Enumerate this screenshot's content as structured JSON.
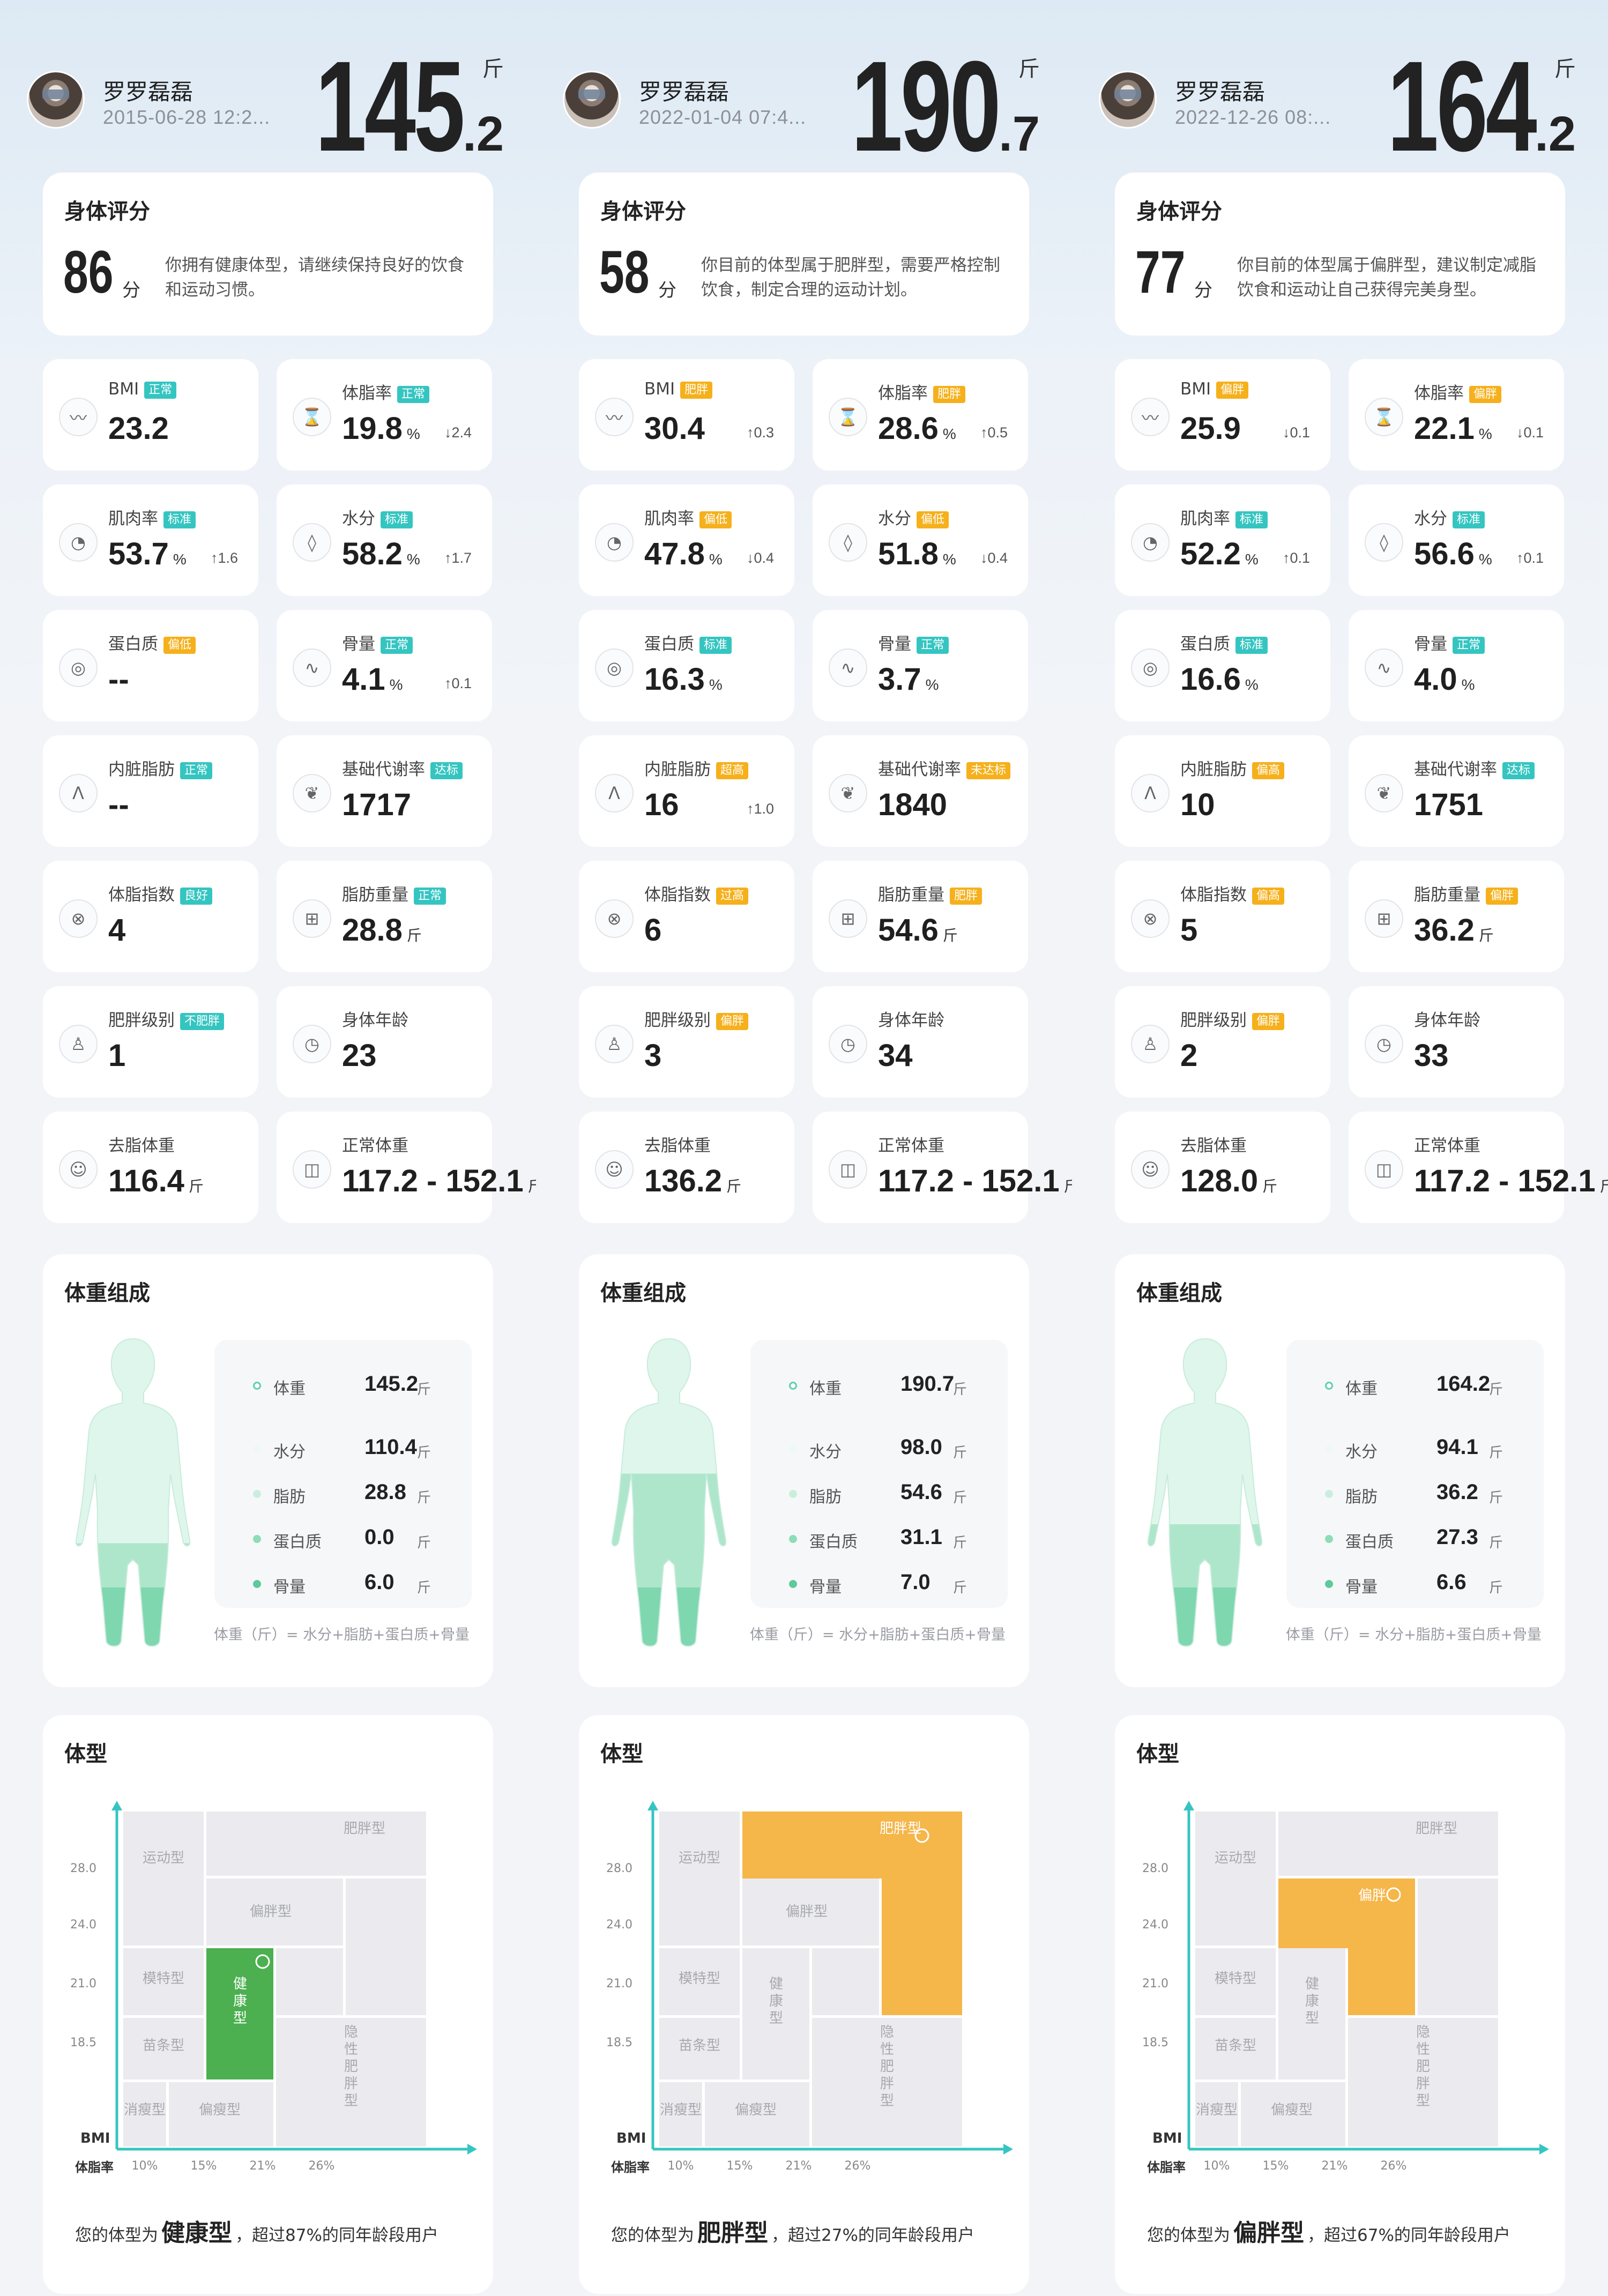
{
  "colors": {
    "accent": "#35c5c1",
    "tag_green": "#35c5c1",
    "tag_orange": "#f5b01b",
    "healthy": "#4caf50",
    "fat": "#f5b64a",
    "body": "#dff6ec",
    "body_low": "#aee6cc"
  },
  "labels": {
    "score_title": "身体评分",
    "score_unit": "分",
    "comp_title": "体重组成",
    "type_title": "体型",
    "formula": "体重（斤）= 水分+脂肪+蛋白质+骨量",
    "weight_unit": "斤",
    "result_prefix": "您的体型为",
    "type_axis_y": "BMI",
    "type_axis_x": "体脂率",
    "y_ticks": [
      "28.0",
      "24.0",
      "21.0",
      "18.5"
    ],
    "x_ticks": [
      "10%",
      "15%",
      "21%",
      "26%"
    ],
    "cell_labels": {
      "sport": "运动型",
      "fat": "肥胖型",
      "partial_fat": "偏胖型",
      "model": "模特型",
      "healthy": "健康型",
      "slim": "苗条型",
      "thin": "消瘦型",
      "partial_thin": "偏瘦型",
      "hidden_fat": "隐性肥胖型"
    }
  },
  "records": [
    {
      "user_name": "罗罗磊磊",
      "timestamp": "2015-06-28 12:2...",
      "weight_int": "145",
      "weight_dec": ".2",
      "score": "86",
      "score_desc": "你拥有健康体型，请继续保持良好的饮食和运动习惯。",
      "metrics": [
        {
          "icon": "bmi-icon",
          "glyph": "〰",
          "label": "BMI",
          "tag": "正常",
          "tag_color": "g",
          "value": "23.2",
          "unit": "",
          "change": ""
        },
        {
          "icon": "body-fat-icon",
          "glyph": "⌛",
          "label": "体脂率",
          "tag": "正常",
          "tag_color": "g",
          "value": "19.8",
          "unit": "%",
          "change": "↓2.4"
        },
        {
          "icon": "muscle-icon",
          "glyph": "◔",
          "label": "肌肉率",
          "tag": "标准",
          "tag_color": "g",
          "value": "53.7",
          "unit": "%",
          "change": "↑1.6"
        },
        {
          "icon": "water-drop-icon",
          "glyph": "◊",
          "label": "水分",
          "tag": "标准",
          "tag_color": "g",
          "value": "58.2",
          "unit": "%",
          "change": "↑1.7"
        },
        {
          "icon": "protein-icon",
          "glyph": "◎",
          "label": "蛋白质",
          "tag": "偏低",
          "tag_color": "o",
          "value": "--",
          "unit": "",
          "change": ""
        },
        {
          "icon": "bone-icon",
          "glyph": "∿",
          "label": "骨量",
          "tag": "正常",
          "tag_color": "g",
          "value": "4.1",
          "unit": "%",
          "change": "↑0.1"
        },
        {
          "icon": "lungs-icon",
          "glyph": "ᐱ",
          "label": "内脏脂肪",
          "tag": "正常",
          "tag_color": "g",
          "value": "--",
          "unit": "",
          "change": ""
        },
        {
          "icon": "leaf-icon",
          "glyph": "❦",
          "label": "基础代谢率",
          "tag": "达标",
          "tag_color": "g",
          "value": "1717",
          "unit": "",
          "change": ""
        },
        {
          "icon": "fat-index-icon",
          "glyph": "⊗",
          "label": "体脂指数",
          "tag": "良好",
          "tag_color": "g",
          "value": "4",
          "unit": "",
          "change": ""
        },
        {
          "icon": "fat-weight-icon",
          "glyph": "⊞",
          "label": "脂肪重量",
          "tag": "正常",
          "tag_color": "g",
          "value": "28.8",
          "unit": "斤",
          "change": ""
        },
        {
          "icon": "torso-icon",
          "glyph": "♙",
          "label": "肥胖级别",
          "tag": "不肥胖",
          "tag_color": "g",
          "value": "1",
          "unit": "",
          "change": ""
        },
        {
          "icon": "clock-icon",
          "glyph": "◷",
          "label": "身体年龄",
          "tag": "",
          "tag_color": "g",
          "value": "23",
          "unit": "",
          "change": ""
        },
        {
          "icon": "meditation-icon",
          "glyph": "☺",
          "label": "去脂体重",
          "tag": "",
          "tag_color": "g",
          "value": "116.4",
          "unit": "斤",
          "change": ""
        },
        {
          "icon": "scale-icon",
          "glyph": "◫",
          "label": "正常体重",
          "tag": "",
          "tag_color": "g",
          "value": "117.2 - 152.1",
          "unit": "斤",
          "change": ""
        }
      ],
      "composition": {
        "weight": "145.2",
        "water": "110.4",
        "fat": "28.8",
        "protein": "0.0",
        "bone": "6.0",
        "fill_level": 0.34,
        "fat_level": 0.2
      },
      "body_type": "健康型",
      "exceed_text": "，超过87%的同年龄段用户",
      "highlight": "healthy",
      "highlight_label": "健康型"
    },
    {
      "user_name": "罗罗磊磊",
      "timestamp": "2022-01-04 07:4...",
      "weight_int": "190",
      "weight_dec": ".7",
      "score": "58",
      "score_desc": "你目前的体型属于肥胖型，需要严格控制饮食，制定合理的运动计划。",
      "metrics": [
        {
          "icon": "bmi-icon",
          "glyph": "〰",
          "label": "BMI",
          "tag": "肥胖",
          "tag_color": "o",
          "value": "30.4",
          "unit": "",
          "change": "↑0.3"
        },
        {
          "icon": "body-fat-icon",
          "glyph": "⌛",
          "label": "体脂率",
          "tag": "肥胖",
          "tag_color": "o",
          "value": "28.6",
          "unit": "%",
          "change": "↑0.5"
        },
        {
          "icon": "muscle-icon",
          "glyph": "◔",
          "label": "肌肉率",
          "tag": "偏低",
          "tag_color": "o",
          "value": "47.8",
          "unit": "%",
          "change": "↓0.4"
        },
        {
          "icon": "water-drop-icon",
          "glyph": "◊",
          "label": "水分",
          "tag": "偏低",
          "tag_color": "o",
          "value": "51.8",
          "unit": "%",
          "change": "↓0.4"
        },
        {
          "icon": "protein-icon",
          "glyph": "◎",
          "label": "蛋白质",
          "tag": "标准",
          "tag_color": "g",
          "value": "16.3",
          "unit": "%",
          "change": ""
        },
        {
          "icon": "bone-icon",
          "glyph": "∿",
          "label": "骨量",
          "tag": "正常",
          "tag_color": "g",
          "value": "3.7",
          "unit": "%",
          "change": ""
        },
        {
          "icon": "lungs-icon",
          "glyph": "ᐱ",
          "label": "内脏脂肪",
          "tag": "超高",
          "tag_color": "o",
          "value": "16",
          "unit": "",
          "change": "↑1.0"
        },
        {
          "icon": "leaf-icon",
          "glyph": "❦",
          "label": "基础代谢率",
          "tag": "未达标",
          "tag_color": "o",
          "value": "1840",
          "unit": "",
          "change": ""
        },
        {
          "icon": "fat-index-icon",
          "glyph": "⊗",
          "label": "体脂指数",
          "tag": "过高",
          "tag_color": "o",
          "value": "6",
          "unit": "",
          "change": ""
        },
        {
          "icon": "fat-weight-icon",
          "glyph": "⊞",
          "label": "脂肪重量",
          "tag": "肥胖",
          "tag_color": "o",
          "value": "54.6",
          "unit": "斤",
          "change": ""
        },
        {
          "icon": "torso-icon",
          "glyph": "♙",
          "label": "肥胖级别",
          "tag": "偏胖",
          "tag_color": "o",
          "value": "3",
          "unit": "",
          "change": ""
        },
        {
          "icon": "clock-icon",
          "glyph": "◷",
          "label": "身体年龄",
          "tag": "",
          "tag_color": "g",
          "value": "34",
          "unit": "",
          "change": ""
        },
        {
          "icon": "meditation-icon",
          "glyph": "☺",
          "label": "去脂体重",
          "tag": "",
          "tag_color": "g",
          "value": "136.2",
          "unit": "斤",
          "change": ""
        },
        {
          "icon": "scale-icon",
          "glyph": "◫",
          "label": "正常体重",
          "tag": "",
          "tag_color": "g",
          "value": "117.2 - 152.1",
          "unit": "斤",
          "change": ""
        }
      ],
      "composition": {
        "weight": "190.7",
        "water": "98.0",
        "fat": "54.6",
        "protein": "31.1",
        "bone": "7.0",
        "fill_level": 0.56,
        "fat_level": 0.2
      },
      "body_type": "肥胖型",
      "exceed_text": "，超过27%的同年龄段用户",
      "highlight": "fat",
      "highlight_label": "肥胖型"
    },
    {
      "user_name": "罗罗磊磊",
      "timestamp": "2022-12-26 08:...",
      "weight_int": "164",
      "weight_dec": ".2",
      "score": "77",
      "score_desc": "你目前的体型属于偏胖型，建议制定减脂饮食和运动让自己获得完美身型。",
      "metrics": [
        {
          "icon": "bmi-icon",
          "glyph": "〰",
          "label": "BMI",
          "tag": "偏胖",
          "tag_color": "o",
          "value": "25.9",
          "unit": "",
          "change": "↓0.1"
        },
        {
          "icon": "body-fat-icon",
          "glyph": "⌛",
          "label": "体脂率",
          "tag": "偏胖",
          "tag_color": "o",
          "value": "22.1",
          "unit": "%",
          "change": "↓0.1"
        },
        {
          "icon": "muscle-icon",
          "glyph": "◔",
          "label": "肌肉率",
          "tag": "标准",
          "tag_color": "g",
          "value": "52.2",
          "unit": "%",
          "change": "↑0.1"
        },
        {
          "icon": "water-drop-icon",
          "glyph": "◊",
          "label": "水分",
          "tag": "标准",
          "tag_color": "g",
          "value": "56.6",
          "unit": "%",
          "change": "↑0.1"
        },
        {
          "icon": "protein-icon",
          "glyph": "◎",
          "label": "蛋白质",
          "tag": "标准",
          "tag_color": "g",
          "value": "16.6",
          "unit": "%",
          "change": ""
        },
        {
          "icon": "bone-icon",
          "glyph": "∿",
          "label": "骨量",
          "tag": "正常",
          "tag_color": "g",
          "value": "4.0",
          "unit": "%",
          "change": ""
        },
        {
          "icon": "lungs-icon",
          "glyph": "ᐱ",
          "label": "内脏脂肪",
          "tag": "偏高",
          "tag_color": "o",
          "value": "10",
          "unit": "",
          "change": ""
        },
        {
          "icon": "leaf-icon",
          "glyph": "❦",
          "label": "基础代谢率",
          "tag": "达标",
          "tag_color": "g",
          "value": "1751",
          "unit": "",
          "change": ""
        },
        {
          "icon": "fat-index-icon",
          "glyph": "⊗",
          "label": "体脂指数",
          "tag": "偏高",
          "tag_color": "o",
          "value": "5",
          "unit": "",
          "change": ""
        },
        {
          "icon": "fat-weight-icon",
          "glyph": "⊞",
          "label": "脂肪重量",
          "tag": "偏胖",
          "tag_color": "o",
          "value": "36.2",
          "unit": "斤",
          "change": ""
        },
        {
          "icon": "torso-icon",
          "glyph": "♙",
          "label": "肥胖级别",
          "tag": "偏胖",
          "tag_color": "o",
          "value": "2",
          "unit": "",
          "change": ""
        },
        {
          "icon": "clock-icon",
          "glyph": "◷",
          "label": "身体年龄",
          "tag": "",
          "tag_color": "g",
          "value": "33",
          "unit": "",
          "change": ""
        },
        {
          "icon": "meditation-icon",
          "glyph": "☺",
          "label": "去脂体重",
          "tag": "",
          "tag_color": "g",
          "value": "128.0",
          "unit": "斤",
          "change": ""
        },
        {
          "icon": "scale-icon",
          "glyph": "◫",
          "label": "正常体重",
          "tag": "",
          "tag_color": "g",
          "value": "117.2 - 152.1",
          "unit": "斤",
          "change": ""
        }
      ],
      "composition": {
        "weight": "164.2",
        "water": "94.1",
        "fat": "36.2",
        "protein": "27.3",
        "bone": "6.6",
        "fill_level": 0.4,
        "fat_level": 0.2
      },
      "body_type": "偏胖型",
      "exceed_text": "，超过67%的同年龄段用户",
      "highlight": "partial_fat",
      "highlight_label": "偏胖"
    }
  ]
}
